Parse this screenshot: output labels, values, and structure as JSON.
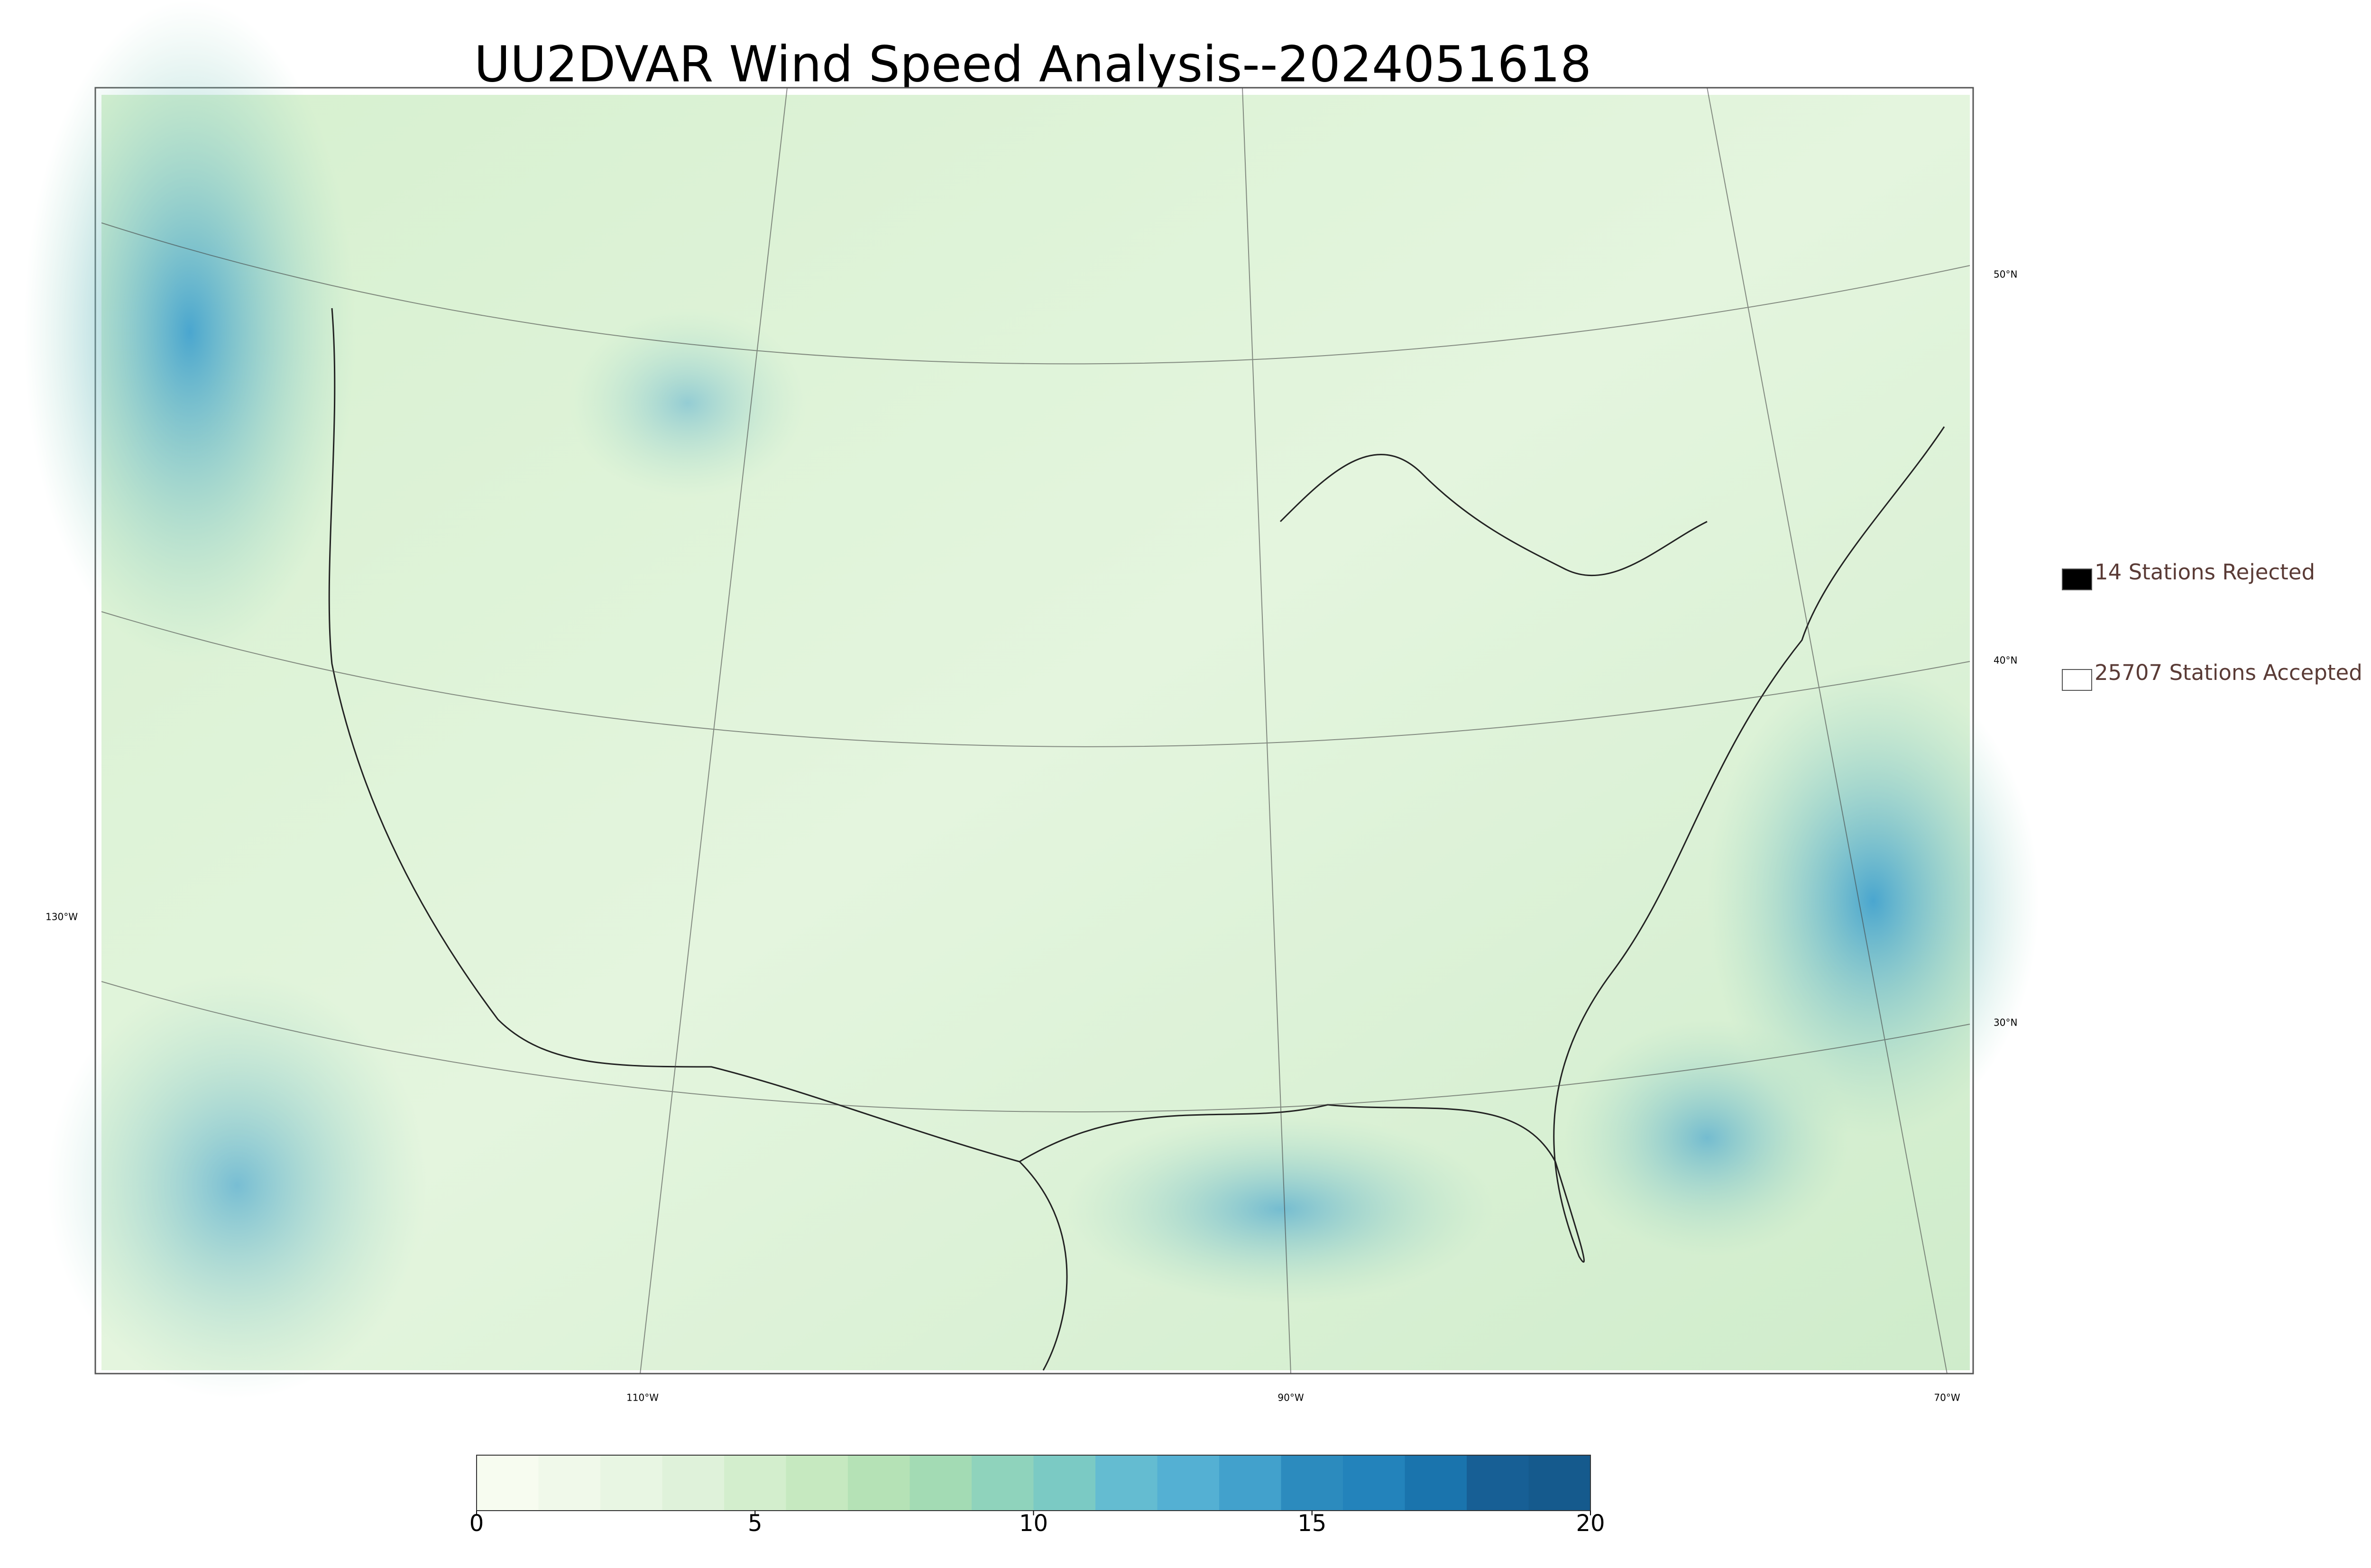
{
  "title": "UU2DVAR Wind Speed Analysis--2024051618",
  "legend": [
    {
      "label": "14 Stations Rejected",
      "color": "#000000"
    },
    {
      "label": "25707 Stations Accepted",
      "color": "#ffffff"
    }
  ],
  "latitude_labels": [
    "50°N",
    "40°N",
    "30°N"
  ],
  "longitude_labels": [
    "130°W",
    "110°W",
    "90°W",
    "70°W"
  ],
  "colorbar": {
    "range": [
      0,
      20
    ],
    "ticks": [
      0,
      5,
      10,
      15,
      20
    ],
    "colors": [
      "#f7fcf0",
      "#f0f9ea",
      "#e8f6e3",
      "#dff2da",
      "#d3eecd",
      "#c6e9c0",
      "#b5e2b6",
      "#a3dbb4",
      "#8fd3bc",
      "#7bcac4",
      "#64bcd1",
      "#54b0d3",
      "#42a1cc",
      "#2c8bbe",
      "#2383bb",
      "#1a74ad",
      "#175f95",
      "#155a8d"
    ]
  }
}
